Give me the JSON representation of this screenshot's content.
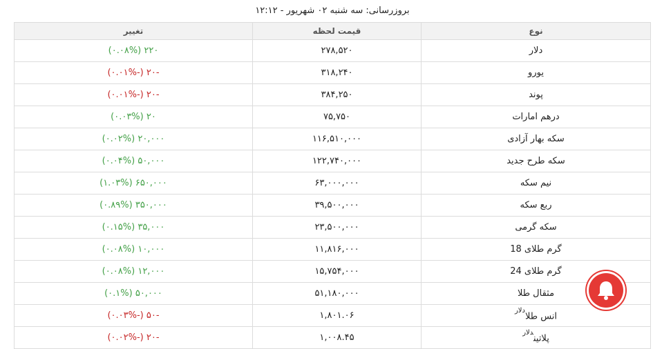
{
  "header": {
    "title": "بروزرسانی: سه شنبه ۰۲ شهریور - ۱۲:۱۲"
  },
  "table": {
    "columns": [
      "نوع",
      "قیمت لحظه",
      "تغییر"
    ],
    "rows": [
      {
        "type": "دلار",
        "price": "۲۷۸,۵۲۰",
        "change": "۲۲۰ (۰.۰۸%)",
        "color": "#43a047"
      },
      {
        "type": "یورو",
        "price": "۳۱۸,۲۴۰",
        "change": "-۲۰ (-۰.۰۱%)",
        "color": "#c62828"
      },
      {
        "type": "پوند",
        "price": "۳۸۴,۲۵۰",
        "change": "-۲۰ (-۰.۰۱%)",
        "color": "#c62828"
      },
      {
        "type": "درهم امارات",
        "price": "۷۵,۷۵۰",
        "change": "۲۰ (۰.۰۳%)",
        "color": "#43a047"
      },
      {
        "type": "سکه بهار آزادی",
        "price": "۱۱۶,۵۱۰,۰۰۰",
        "change": "۲۰,۰۰۰ (۰.۰۲%)",
        "color": "#43a047"
      },
      {
        "type": "سکه طرح جدید",
        "price": "۱۲۲,۷۴۰,۰۰۰",
        "change": "۵۰,۰۰۰ (۰.۰۴%)",
        "color": "#43a047"
      },
      {
        "type": "نیم سکه",
        "price": "۶۳,۰۰۰,۰۰۰",
        "change": "۶۵۰,۰۰۰ (۱.۰۳%)",
        "color": "#43a047"
      },
      {
        "type": "ربع سکه",
        "price": "۳۹,۵۰۰,۰۰۰",
        "change": "۳۵۰,۰۰۰ (۰.۸۹%)",
        "color": "#43a047"
      },
      {
        "type": "سکه گرمی",
        "price": "۲۳,۵۰۰,۰۰۰",
        "change": "۳۵,۰۰۰ (۰.۱۵%)",
        "color": "#43a047"
      },
      {
        "type": "گرم طلای 18",
        "price": "۱۱,۸۱۶,۰۰۰",
        "change": "۱۰,۰۰۰ (۰.۰۸%)",
        "color": "#43a047"
      },
      {
        "type": "گرم طلای 24",
        "price": "۱۵,۷۵۴,۰۰۰",
        "change": "۱۲,۰۰۰ (۰.۰۸%)",
        "color": "#43a047"
      },
      {
        "type": "مثقال طلا",
        "price": "۵۱,۱۸۰,۰۰۰",
        "change": "۵۰,۰۰۰ (۰.۱%)",
        "color": "#43a047"
      },
      {
        "type": "انس طلا",
        "unit": "دلار",
        "price": "۱,۸۰۱.۰۶",
        "change": "-۵۰ (-۰.۰۳%)",
        "color": "#c62828"
      },
      {
        "type": "پلاتین",
        "unit": "دلار",
        "price": "۱,۰۰۸.۴۵",
        "change": "-۲۰ (-۰.۰۲%)",
        "color": "#c62828"
      }
    ]
  }
}
